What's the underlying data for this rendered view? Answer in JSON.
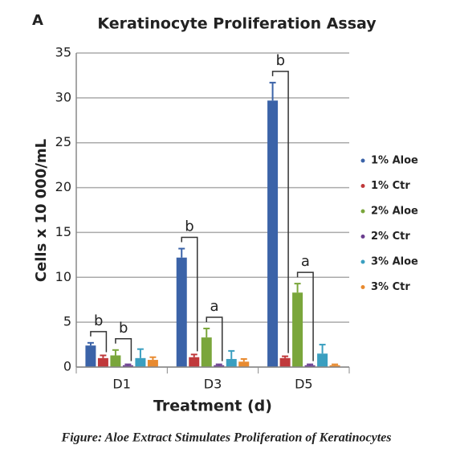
{
  "chart_data": {
    "type": "bar",
    "panel_label": "A",
    "title": "Keratinocyte Proliferation Assay",
    "x_label": "Treatment (d)",
    "y_label": "Cells x 10 000/mL",
    "caption": "Figure: Aloe Extract Stimulates Proliferation of Keratinocytes",
    "categories": [
      "D1",
      "D3",
      "D5"
    ],
    "series": [
      {
        "name": "1% Aloe",
        "color": "#3b63a8",
        "values": [
          2.4,
          12.2,
          29.7
        ],
        "errors": [
          0.3,
          1.0,
          2.0
        ]
      },
      {
        "name": "1% Ctr",
        "color": "#c0393b",
        "values": [
          1.0,
          1.1,
          1.0
        ],
        "errors": [
          0.3,
          0.3,
          0.2
        ]
      },
      {
        "name": "2% Aloe",
        "color": "#7aa63b",
        "values": [
          1.3,
          3.3,
          8.3
        ],
        "errors": [
          0.6,
          1.0,
          1.0
        ]
      },
      {
        "name": "2% Ctr",
        "color": "#6a3d8f",
        "values": [
          0.2,
          0.2,
          0.2
        ],
        "errors": [
          0.1,
          0.1,
          0.1
        ]
      },
      {
        "name": "3% Aloe",
        "color": "#3a9fc0",
        "values": [
          1.0,
          0.9,
          1.5
        ],
        "errors": [
          1.0,
          0.9,
          1.0
        ]
      },
      {
        "name": "3% Ctr",
        "color": "#e88a2f",
        "values": [
          0.8,
          0.6,
          0.2
        ],
        "errors": [
          0.3,
          0.3,
          0.1
        ]
      }
    ],
    "annotations": [
      {
        "label": "b",
        "category": 0,
        "from": 0,
        "to": 1
      },
      {
        "label": "b",
        "category": 0,
        "from": 2,
        "to": 3
      },
      {
        "label": "b",
        "category": 1,
        "from": 0,
        "to": 1
      },
      {
        "label": "a",
        "category": 1,
        "from": 2,
        "to": 3
      },
      {
        "label": "b",
        "category": 2,
        "from": 0,
        "to": 1
      },
      {
        "label": "a",
        "category": 2,
        "from": 2,
        "to": 3
      }
    ],
    "ylim": [
      0,
      35
    ],
    "yticks": [
      0,
      5,
      10,
      15,
      20,
      25,
      30,
      35
    ],
    "grid": true,
    "legend": "right"
  }
}
